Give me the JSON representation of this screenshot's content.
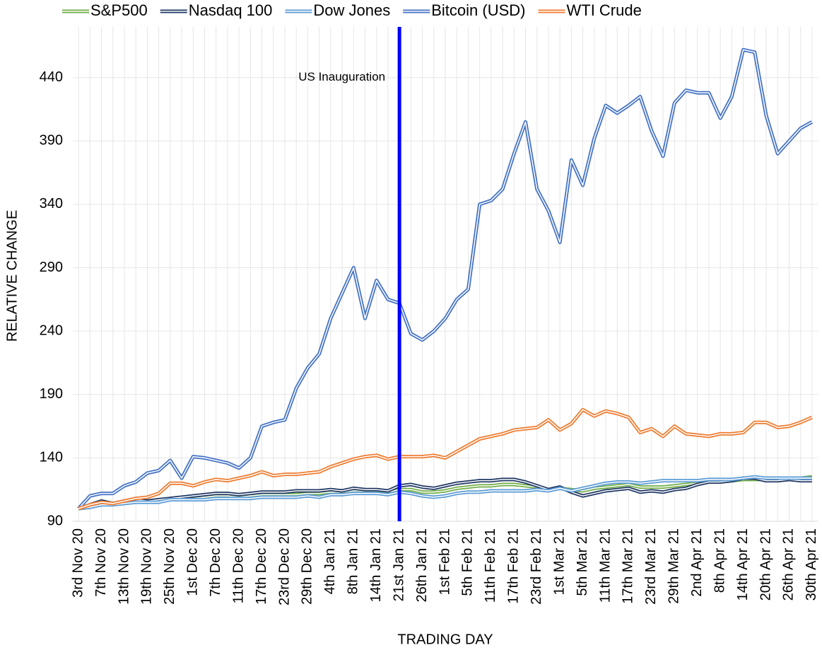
{
  "chart_data": {
    "type": "line",
    "x_label": "TRADING DAY",
    "y_label": "RELATIVE CHANGE",
    "categories": [
      "3rd Nov 20",
      null,
      "7th Nov 20",
      null,
      "13th Nov 20",
      null,
      "19th Nov 20",
      null,
      "25th Nov 20",
      null,
      "1st Dec 20",
      null,
      "7th Dec 20",
      null,
      "11th Dec 20",
      null,
      "17th Dec 20",
      null,
      "23rd Dec 20",
      null,
      "29th Dec 20",
      null,
      "4th Jan 21",
      null,
      "8th Jan 21",
      null,
      "14th Jan 21",
      null,
      "21st Jan 21",
      null,
      "26th Jan 21",
      null,
      "1st Feb 21",
      null,
      "5th Feb 21",
      null,
      "11th Feb 21",
      null,
      "17th Feb 21",
      null,
      "23rd Feb 21",
      null,
      "1st Mar 21",
      null,
      "5th Mar 21",
      null,
      "11th Mar 21",
      null,
      "17th Mar 21",
      null,
      "23rd Mar 21",
      null,
      "29th Mar 21",
      null,
      "2nd Apr 21",
      null,
      "8th Apr 21",
      null,
      "14th Apr 21",
      null,
      "20th Apr 21",
      null,
      "26th Apr 21",
      null,
      "30th Apr 21"
    ],
    "series": [
      {
        "name": "S&P500",
        "color": "#70ad47",
        "values": [
          100,
          102,
          104,
          104,
          105,
          106,
          106,
          107,
          107,
          108,
          108,
          109,
          110,
          110,
          109,
          110,
          111,
          111,
          111,
          111,
          112,
          112,
          113,
          113,
          114,
          114,
          114,
          113,
          115,
          115,
          113,
          113,
          114,
          116,
          117,
          118,
          118,
          119,
          119,
          118,
          117,
          115,
          116,
          115,
          114,
          116,
          117,
          118,
          119,
          117,
          117,
          117,
          118,
          119,
          120,
          121,
          121,
          122,
          123,
          123,
          123,
          122,
          123,
          124,
          125
        ]
      },
      {
        "name": "Nasdaq 100",
        "color": "#203864",
        "values": [
          100,
          103,
          106,
          104,
          106,
          107,
          106,
          107,
          108,
          109,
          110,
          111,
          112,
          112,
          111,
          112,
          113,
          113,
          113,
          114,
          114,
          114,
          115,
          114,
          116,
          115,
          115,
          114,
          118,
          119,
          117,
          116,
          118,
          120,
          121,
          122,
          122,
          123,
          123,
          121,
          118,
          115,
          117,
          113,
          110,
          112,
          114,
          115,
          116,
          113,
          114,
          113,
          115,
          116,
          119,
          121,
          121,
          122,
          124,
          124,
          122,
          122,
          123,
          122,
          122
        ]
      },
      {
        "name": "Dow Jones",
        "color": "#5b9bd5",
        "values": [
          100,
          101,
          103,
          103,
          104,
          105,
          105,
          105,
          107,
          107,
          107,
          107,
          108,
          108,
          108,
          108,
          109,
          109,
          109,
          109,
          110,
          109,
          111,
          111,
          112,
          112,
          112,
          111,
          113,
          112,
          110,
          109,
          110,
          112,
          113,
          113,
          114,
          114,
          114,
          114,
          115,
          114,
          116,
          114,
          116,
          118,
          120,
          121,
          121,
          120,
          121,
          122,
          122,
          122,
          122,
          123,
          123,
          123,
          124,
          125,
          124,
          124,
          124,
          124,
          124
        ]
      },
      {
        "name": "Bitcoin (USD)",
        "color": "#4472c4",
        "values": [
          100,
          110,
          112,
          112,
          118,
          121,
          128,
          130,
          138,
          124,
          141,
          140,
          138,
          136,
          132,
          140,
          165,
          168,
          170,
          195,
          211,
          222,
          250,
          270,
          290,
          250,
          280,
          265,
          262,
          238,
          233,
          240,
          250,
          265,
          273,
          340,
          343,
          352,
          380,
          405,
          352,
          335,
          310,
          375,
          355,
          392,
          418,
          412,
          418,
          425,
          398,
          378,
          420,
          430,
          428,
          428,
          408,
          425,
          462,
          460,
          410,
          380,
          390,
          400,
          405
        ]
      },
      {
        "name": "WTI Crude",
        "color": "#ed7d31",
        "values": [
          100,
          103,
          105,
          104,
          106,
          108,
          109,
          112,
          120,
          120,
          118,
          121,
          123,
          122,
          124,
          126,
          129,
          126,
          127,
          127,
          128,
          129,
          133,
          136,
          139,
          141,
          142,
          139,
          141,
          141,
          141,
          142,
          140,
          145,
          150,
          155,
          157,
          159,
          162,
          163,
          164,
          170,
          162,
          167,
          178,
          173,
          177,
          175,
          172,
          160,
          163,
          157,
          165,
          159,
          158,
          157,
          159,
          159,
          160,
          168,
          168,
          164,
          165,
          168,
          172
        ]
      }
    ],
    "ylim": [
      90,
      480
    ],
    "yticks": [
      90,
      140,
      190,
      240,
      290,
      340,
      390,
      440
    ],
    "grid": true,
    "legend": "top",
    "annotation": {
      "text": "US Inauguration",
      "x": "21st Jan 21",
      "color": "#0000ff"
    }
  }
}
